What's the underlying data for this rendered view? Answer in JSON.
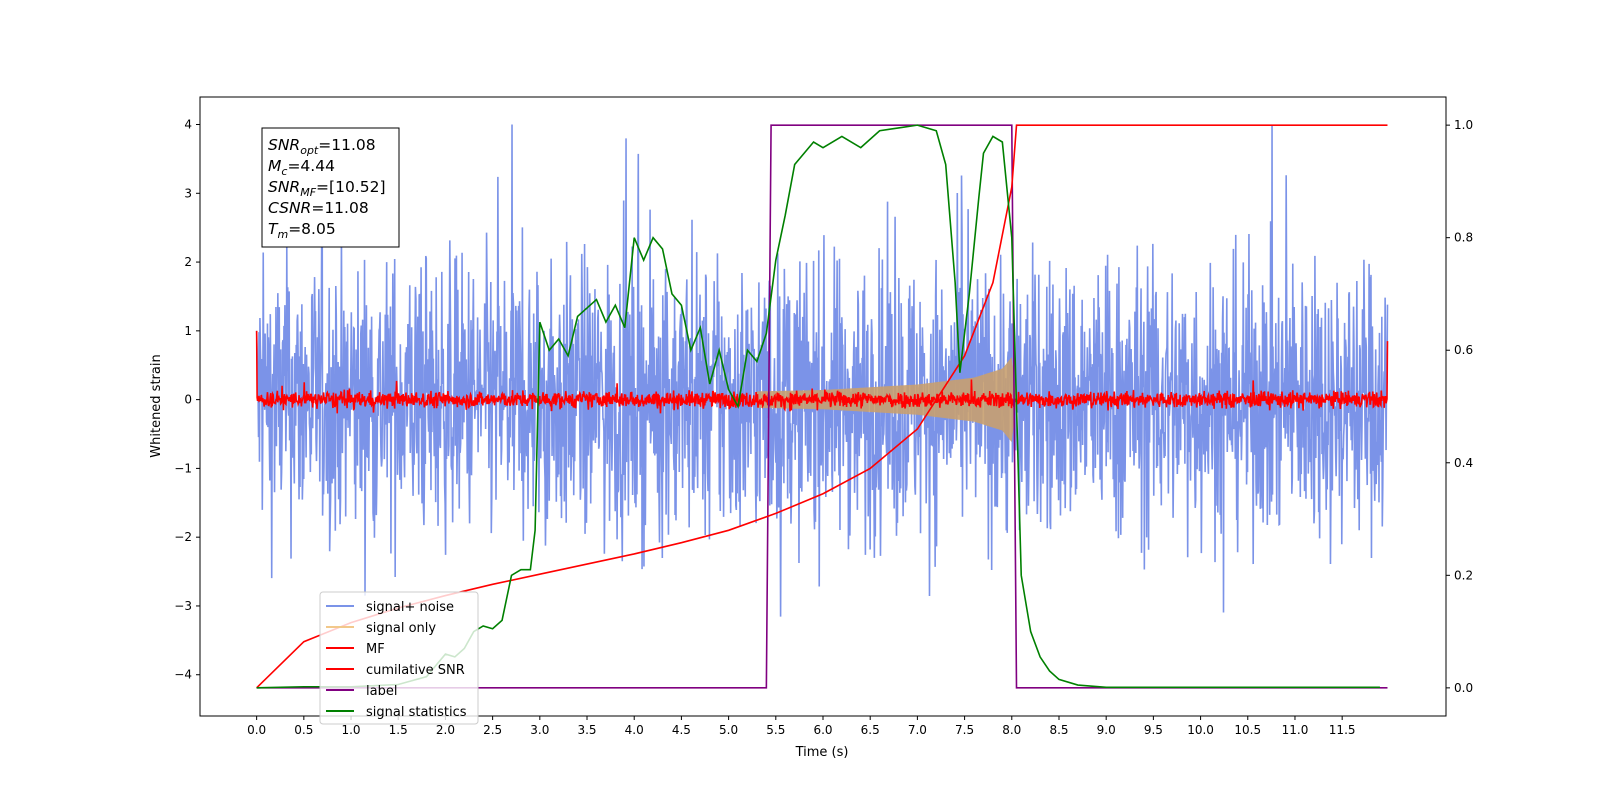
{
  "chart_data": {
    "type": "line",
    "xlabel": "Time (s)",
    "ylabel": "Whitened strain",
    "xlim": [
      -0.6,
      12.6
    ],
    "ylim": [
      -4.6,
      4.4
    ],
    "y2lim": [
      -0.05,
      1.05
    ],
    "xticks": [
      "0.0",
      "0.5",
      "1.0",
      "1.5",
      "2.0",
      "2.5",
      "3.0",
      "3.5",
      "4.0",
      "4.5",
      "5.0",
      "5.5",
      "6.0",
      "6.5",
      "7.0",
      "7.5",
      "8.0",
      "8.5",
      "9.0",
      "9.5",
      "10.0",
      "10.5",
      "11.0",
      "11.5"
    ],
    "yticks": [
      "−4",
      "−3",
      "−2",
      "−1",
      "0",
      "1",
      "2",
      "3",
      "4"
    ],
    "y2ticks": [
      "0.0",
      "0.2",
      "0.4",
      "0.6",
      "0.8",
      "1.0"
    ],
    "legend_placement": "lower-left",
    "grid": false,
    "annotation": {
      "lines": [
        {
          "var": "SNR",
          "sub": "opt",
          "value": "=11.08"
        },
        {
          "var": "M",
          "sub": "c",
          "value": "=4.44"
        },
        {
          "var": "SNR",
          "sub": "MF",
          "value": "=[10.52]"
        },
        {
          "var": "CSNR",
          "sub": "",
          "value": "=11.08"
        },
        {
          "var": "T",
          "sub": "m",
          "value": "=8.05"
        }
      ]
    },
    "series": [
      {
        "name": "signal+ noise",
        "color": "#7b93e8",
        "axis": "left",
        "style": "noise",
        "x_range": [
          0,
          11.98
        ],
        "amplitude": 4.0
      },
      {
        "name": "signal only",
        "color": "#c8a070",
        "axis": "left",
        "style": "chirp",
        "x_range": [
          5.3,
          8.05
        ],
        "envelope": [
          [
            5.3,
            0.12
          ],
          [
            6.0,
            0.14
          ],
          [
            7.0,
            0.22
          ],
          [
            7.6,
            0.32
          ],
          [
            7.9,
            0.45
          ],
          [
            8.0,
            0.62
          ],
          [
            8.05,
            0.0
          ]
        ]
      },
      {
        "name": "MF",
        "color": "#ff0000",
        "axis": "left",
        "style": "noise",
        "x_range": [
          0,
          11.98
        ],
        "amplitude": 0.2
      },
      {
        "name": "cumilative SNR",
        "color": "#ff0000",
        "axis": "right",
        "points": [
          [
            0,
            0
          ],
          [
            0.5,
            0.082
          ],
          [
            1,
            0.116
          ],
          [
            1.5,
            0.142
          ],
          [
            2,
            0.164
          ],
          [
            2.5,
            0.184
          ],
          [
            3,
            0.202
          ],
          [
            3.5,
            0.22
          ],
          [
            4,
            0.238
          ],
          [
            4.5,
            0.258
          ],
          [
            5,
            0.28
          ],
          [
            5.5,
            0.31
          ],
          [
            6,
            0.345
          ],
          [
            6.5,
            0.39
          ],
          [
            7,
            0.46
          ],
          [
            7.5,
            0.59
          ],
          [
            7.8,
            0.72
          ],
          [
            8,
            0.89
          ],
          [
            8.05,
            1.0
          ],
          [
            11.98,
            1.0
          ]
        ]
      },
      {
        "name": "label",
        "color": "#800080",
        "axis": "right",
        "points": [
          [
            0,
            0
          ],
          [
            5.4,
            0
          ],
          [
            5.45,
            1
          ],
          [
            8.0,
            1
          ],
          [
            8.05,
            0
          ],
          [
            11.98,
            0
          ]
        ]
      },
      {
        "name": "signal statistics",
        "color": "#008000",
        "axis": "right",
        "points": [
          [
            0,
            0
          ],
          [
            0.5,
            0.002
          ],
          [
            1.0,
            0.002
          ],
          [
            1.5,
            0.006
          ],
          [
            1.8,
            0.02
          ],
          [
            2.0,
            0.06
          ],
          [
            2.1,
            0.055
          ],
          [
            2.2,
            0.07
          ],
          [
            2.3,
            0.1
          ],
          [
            2.4,
            0.11
          ],
          [
            2.5,
            0.105
          ],
          [
            2.6,
            0.12
          ],
          [
            2.7,
            0.2
          ],
          [
            2.8,
            0.21
          ],
          [
            2.9,
            0.21
          ],
          [
            2.95,
            0.28
          ],
          [
            3.0,
            0.65
          ],
          [
            3.1,
            0.6
          ],
          [
            3.2,
            0.62
          ],
          [
            3.3,
            0.59
          ],
          [
            3.4,
            0.66
          ],
          [
            3.6,
            0.69
          ],
          [
            3.7,
            0.65
          ],
          [
            3.8,
            0.68
          ],
          [
            3.9,
            0.64
          ],
          [
            4.0,
            0.8
          ],
          [
            4.1,
            0.76
          ],
          [
            4.2,
            0.8
          ],
          [
            4.3,
            0.78
          ],
          [
            4.4,
            0.7
          ],
          [
            4.5,
            0.68
          ],
          [
            4.6,
            0.6
          ],
          [
            4.7,
            0.64
          ],
          [
            4.8,
            0.54
          ],
          [
            4.9,
            0.6
          ],
          [
            5.0,
            0.53
          ],
          [
            5.1,
            0.5
          ],
          [
            5.2,
            0.6
          ],
          [
            5.3,
            0.58
          ],
          [
            5.4,
            0.63
          ],
          [
            5.5,
            0.76
          ],
          [
            5.6,
            0.84
          ],
          [
            5.7,
            0.93
          ],
          [
            5.9,
            0.97
          ],
          [
            6.0,
            0.96
          ],
          [
            6.2,
            0.98
          ],
          [
            6.4,
            0.96
          ],
          [
            6.6,
            0.99
          ],
          [
            6.8,
            0.995
          ],
          [
            7.0,
            1.0
          ],
          [
            7.2,
            0.99
          ],
          [
            7.3,
            0.93
          ],
          [
            7.4,
            0.72
          ],
          [
            7.45,
            0.56
          ],
          [
            7.55,
            0.7
          ],
          [
            7.65,
            0.87
          ],
          [
            7.7,
            0.95
          ],
          [
            7.8,
            0.98
          ],
          [
            7.9,
            0.97
          ],
          [
            8.0,
            0.8
          ],
          [
            8.1,
            0.2
          ],
          [
            8.2,
            0.1
          ],
          [
            8.3,
            0.055
          ],
          [
            8.4,
            0.03
          ],
          [
            8.5,
            0.015
          ],
          [
            8.7,
            0.005
          ],
          [
            9.0,
            0.001
          ],
          [
            11.9,
            0.001
          ]
        ]
      }
    ]
  }
}
